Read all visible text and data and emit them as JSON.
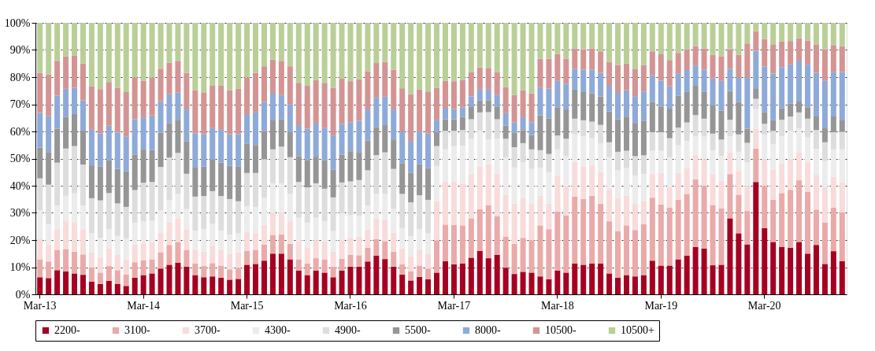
{
  "chart_data": {
    "type": "bar",
    "stacked": true,
    "categories": [
      "Mar-13",
      null,
      null,
      null,
      null,
      null,
      null,
      null,
      null,
      null,
      null,
      null,
      "Mar-14",
      null,
      null,
      null,
      null,
      null,
      null,
      null,
      null,
      null,
      null,
      null,
      "Mar-15",
      null,
      null,
      null,
      null,
      null,
      null,
      null,
      null,
      null,
      null,
      null,
      "Mar-16",
      null,
      null,
      null,
      null,
      null,
      null,
      null,
      null,
      null,
      null,
      null,
      "Mar-17",
      null,
      null,
      null,
      null,
      null,
      null,
      null,
      null,
      null,
      null,
      null,
      "Mar-18",
      null,
      null,
      null,
      null,
      null,
      null,
      null,
      null,
      null,
      null,
      null,
      "Mar-19",
      null,
      null,
      null,
      null,
      null,
      null,
      null,
      null,
      null,
      null,
      null,
      "Mar-20",
      null,
      null,
      null,
      null,
      null,
      null,
      null,
      null,
      null
    ],
    "ylim": [
      0,
      100
    ],
    "yticks": [
      {
        "value": 0,
        "label": "0%"
      },
      {
        "value": 10,
        "label": "10%"
      },
      {
        "value": 20,
        "label": "20%"
      },
      {
        "value": 30,
        "label": "30%"
      },
      {
        "value": 40,
        "label": "40%"
      },
      {
        "value": 50,
        "label": "50%"
      },
      {
        "value": 60,
        "label": "60%"
      },
      {
        "value": 70,
        "label": "70%"
      },
      {
        "value": 80,
        "label": "80%"
      },
      {
        "value": 90,
        "label": "90%"
      },
      {
        "value": 100,
        "label": "100%"
      }
    ],
    "grid": "y",
    "legend": "bottom",
    "series": [
      {
        "name": "2200-",
        "color": "#a50021",
        "values": [
          6.3,
          6,
          8.9,
          8.5,
          7.7,
          7.2,
          4.7,
          3.8,
          5,
          3.9,
          3.1,
          6.1,
          7.1,
          7.7,
          9.5,
          10.9,
          11.7,
          10.2,
          7.1,
          6.3,
          6.6,
          6.1,
          5.4,
          5.7,
          10.9,
          11.2,
          12.4,
          15,
          15,
          12.9,
          8.8,
          7.1,
          8.7,
          8,
          6.3,
          8.8,
          10.2,
          10.2,
          12.1,
          14.3,
          13,
          10.2,
          7.3,
          5.1,
          6.4,
          5.6,
          8,
          12.2,
          11.1,
          11.4,
          13.5,
          16,
          13.3,
          14.6,
          9.8,
          7.5,
          8.3,
          8,
          6.6,
          5.6,
          8.8,
          8,
          11.4,
          10.9,
          11.4,
          11.4,
          7.7,
          6.1,
          7.1,
          6.6,
          7.1,
          12.4,
          10.6,
          10.6,
          12.9,
          14.3,
          17.4,
          16.9,
          10.7,
          10.9,
          28,
          22.5,
          18.4,
          41.4,
          24.4,
          19.3,
          17.5,
          17.2,
          19.3,
          15,
          18.2,
          11.2,
          15.9,
          12.2
        ]
      },
      {
        "name": "3100-",
        "color": "#eaaaaa",
        "values": [
          6.6,
          6.1,
          7.5,
          8.2,
          8,
          7.5,
          5.1,
          4.2,
          5.4,
          5,
          4.2,
          5.7,
          5.5,
          5.2,
          6,
          7.3,
          7.6,
          6.2,
          4.2,
          4.1,
          4.9,
          4.5,
          3.8,
          4,
          5.1,
          5.2,
          6,
          6.9,
          7,
          5.7,
          4.1,
          4.3,
          4.6,
          4.9,
          3.9,
          4.3,
          4.4,
          4.2,
          5,
          6,
          6.6,
          5.5,
          3.8,
          3.4,
          4.2,
          3.9,
          11.8,
          13.5,
          14.5,
          14,
          14.5,
          15.4,
          19.6,
          14.2,
          11.5,
          11.1,
          12.5,
          11.9,
          18.8,
          18.4,
          21.7,
          21,
          24.6,
          24.2,
          24.9,
          22,
          19.2,
          17.2,
          18.3,
          17.1,
          18.8,
          23.2,
          22.5,
          21.4,
          21.9,
          22.7,
          24.9,
          23,
          22.2,
          20.8,
          16.3,
          14.2,
          12.3,
          12.3,
          15.5,
          15.6,
          19.8,
          21.3,
          22.7,
          22.7,
          13,
          15.2,
          16,
          18
        ]
      },
      {
        "name": "3700-",
        "color": "#f8dbdb",
        "values": [
          7.4,
          6.3,
          7.6,
          10.2,
          10.9,
          9.3,
          5.7,
          5.5,
          6.6,
          5.6,
          5.6,
          6.6,
          6.2,
          6.2,
          7.3,
          8.2,
          8.7,
          7.4,
          5.1,
          5.3,
          6.4,
          5.8,
          5.6,
          5.8,
          7,
          6.3,
          7.2,
          8.3,
          8.2,
          8.3,
          6.7,
          5.8,
          6.5,
          6.5,
          5.5,
          7,
          6.2,
          6.9,
          6.8,
          7.5,
          8,
          7,
          5.8,
          5.5,
          5.8,
          5.5,
          14.5,
          15.8,
          16,
          15.2,
          16.3,
          15.7,
          15,
          15.6,
          15.4,
          14.8,
          14.6,
          13.4,
          10.9,
          9.4,
          13.1,
          11.1,
          12.8,
          11.9,
          11.3,
          11.6,
          11.6,
          12.1,
          10.9,
          9.6,
          8.5,
          8.7,
          11.6,
          7.4,
          9.9,
          9.5,
          9,
          9.9,
          11.4,
          10.1,
          8,
          8.7,
          9.2,
          7.3,
          9.7,
          11,
          10.8,
          11.1,
          10.3,
          10.9,
          12.8,
          13,
          11.4,
          11
        ]
      },
      {
        "name": "4300-",
        "color": "#ececec",
        "values": [
          10.7,
          7.5,
          8.7,
          9.4,
          10.6,
          8.7,
          7,
          7.3,
          7,
          7,
          7.7,
          8,
          8.1,
          8,
          8.1,
          8.2,
          9,
          7.6,
          7.1,
          8.3,
          8,
          7.1,
          7.2,
          7,
          9.5,
          9.5,
          10,
          10.7,
          10.7,
          10.1,
          8.7,
          9.2,
          8.5,
          7.5,
          7.6,
          9.7,
          8.3,
          7.7,
          8.8,
          9.2,
          9.4,
          8.7,
          7.5,
          7.4,
          7.6,
          7.5,
          13,
          11.9,
          13,
          14.1,
          13,
          13.1,
          9.1,
          12.9,
          13.8,
          13.3,
          13.2,
          12.9,
          10.4,
          11.6,
          9.8,
          10.9,
          10.1,
          11.3,
          9.9,
          10.6,
          12,
          10.3,
          10.2,
          10.5,
          9.9,
          8.6,
          8.2,
          11.1,
          10.2,
          10,
          7,
          8.3,
          8.8,
          9.2,
          6,
          7.1,
          8.7,
          7.2,
          9.1,
          9.5,
          10.2,
          10.6,
          8.9,
          9.2,
          9.6,
          9.7,
          10.1,
          12.2
        ]
      },
      {
        "name": "4900-",
        "color": "#dddddd",
        "values": [
          11.7,
          14.5,
          15.8,
          17.4,
          17.4,
          15.1,
          12.9,
          13.8,
          13.3,
          12,
          11.6,
          12,
          14.2,
          14.3,
          16,
          15.8,
          15.1,
          13,
          12.5,
          12.2,
          12.1,
          12.7,
          13.1,
          11.8,
          12.2,
          12.5,
          14.2,
          12.5,
          13.5,
          13.5,
          13.1,
          13,
          12.6,
          12,
          12.4,
          11.4,
          12.5,
          13.1,
          13,
          14.3,
          15.3,
          14.8,
          12.6,
          12.5,
          12.5,
          12.3,
          7.3,
          6.8,
          5.6,
          5.8,
          7.2,
          6.8,
          10.1,
          7.2,
          6.8,
          7.5,
          7.1,
          7.2,
          6.4,
          6.7,
          5.1,
          6.3,
          5.8,
          5.8,
          6.1,
          6.8,
          5.5,
          6.8,
          6.4,
          7.1,
          6.9,
          6.8,
          6.8,
          7,
          6.5,
          6.8,
          7.7,
          6.6,
          6.1,
          6,
          6,
          6.4,
          7.2,
          3.8,
          4.1,
          4.8,
          6,
          5.3,
          5.8,
          6.9,
          6.9,
          6.9,
          6.3,
          6.5
        ]
      },
      {
        "name": "5500-",
        "color": "#969696",
        "values": [
          11.3,
          12,
          12.5,
          11.7,
          11.8,
          12.7,
          12.1,
          12.4,
          12,
          12.7,
          13.1,
          13.1,
          12.2,
          11.8,
          12.7,
          12.7,
          12.2,
          12,
          10.9,
          10.9,
          11.6,
          12.3,
          12.3,
          12.7,
          10.7,
          10.3,
          10.4,
          10.9,
          10,
          9.2,
          9.5,
          9.9,
          9.8,
          10.4,
          10.3,
          10.3,
          11.1,
          10.3,
          11,
          10.3,
          10,
          10.6,
          11.3,
          10.8,
          11.4,
          11.7,
          5.1,
          4.3,
          4.3,
          4.8,
          4.7,
          4.5,
          4.4,
          4.7,
          4.8,
          5.2,
          4.8,
          5.3,
          12.8,
          13.1,
          10.4,
          10.8,
          10.7,
          10.4,
          10.4,
          10.5,
          11.4,
          12,
          12.3,
          12,
          12.6,
          11.1,
          9.5,
          10.9,
          11.8,
          11.4,
          10.8,
          10,
          10.4,
          10.7,
          10.6,
          11.9,
          5.2,
          3.9,
          4.2,
          3.9,
          4.3,
          4.7,
          4,
          4.2,
          5,
          5.4,
          5.8,
          4.4
        ]
      },
      {
        "name": "8000-",
        "color": "#8eaad8",
        "values": [
          12.8,
          13.3,
          12.2,
          10.3,
          9.7,
          10.9,
          13.1,
          12.3,
          12.8,
          13.4,
          12.9,
          13,
          11.9,
          12.7,
          11.5,
          10.6,
          10.1,
          11.7,
          12.4,
          11.9,
          11.6,
          12.1,
          11.6,
          12,
          10.7,
          12,
          10.6,
          9.9,
          9,
          10.2,
          11.4,
          11.7,
          12.2,
          11.9,
          12.5,
          11.3,
          10.7,
          11.5,
          11.4,
          10.8,
          10.5,
          11.3,
          11.6,
          11.8,
          12.1,
          12.7,
          4.6,
          4.2,
          3.7,
          3.6,
          3.7,
          3.9,
          3.9,
          4.2,
          4.6,
          4,
          4.7,
          4.7,
          10.4,
          11,
          9.7,
          9.5,
          7.7,
          8.2,
          8.7,
          8.7,
          9.4,
          9.7,
          10,
          9.9,
          10.9,
          9.9,
          9.5,
          8.2,
          8,
          7.9,
          7.5,
          8,
          9.9,
          10.9,
          8.2,
          9,
          18.8,
          13.8,
          16.9,
          17.2,
          15.1,
          14.5,
          15.1,
          15.7,
          16.1,
          17.2,
          16.3,
          17.6
        ]
      },
      {
        "name": "10500-",
        "color": "#d49494",
        "values": [
          14.8,
          15.3,
          12.8,
          12,
          11.9,
          13.6,
          16.1,
          16.3,
          16.1,
          16.5,
          16.3,
          15.4,
          13.4,
          13.9,
          12,
          11.6,
          11.6,
          13.5,
          15.9,
          15.4,
          15.8,
          16.4,
          16.2,
          16.7,
          13.8,
          14.6,
          13.2,
          12.3,
          12.6,
          14.1,
          15.6,
          15.8,
          16.1,
          16.7,
          17.6,
          16.6,
          15.1,
          15.3,
          14.1,
          12.8,
          12.8,
          14.6,
          16,
          17.2,
          15.5,
          15.3,
          11.8,
          10,
          10.3,
          10.1,
          9,
          8.2,
          8,
          8.5,
          9.6,
          10,
          10,
          10.6,
          10.5,
          11,
          9.9,
          9.2,
          7.5,
          7.6,
          7.9,
          7.9,
          8.8,
          10.3,
          9.8,
          10.1,
          9.8,
          8.8,
          9.7,
          9.7,
          7.7,
          7.5,
          7.1,
          7.9,
          8.7,
          9.1,
          7.2,
          8.4,
          12.6,
          7.2,
          10.1,
          10.8,
          9.5,
          8.6,
          8.2,
          8.9,
          10.3,
          11.7,
          10,
          9.5
        ]
      },
      {
        "name": "10500+",
        "color": "#bacf97",
        "values": [
          18.4,
          19,
          14,
          12.3,
          12,
          15,
          23.3,
          24.4,
          21.8,
          23.9,
          25.5,
          20.1,
          21.4,
          20.2,
          16.9,
          14.7,
          14,
          18.4,
          24.8,
          25.6,
          23,
          23,
          24.8,
          24.3,
          20.1,
          18.4,
          16,
          13.5,
          14,
          16,
          22.1,
          23.2,
          21,
          22.1,
          23.9,
          20.6,
          21.5,
          20.8,
          17.8,
          14.8,
          14.4,
          17.3,
          24.1,
          26.3,
          24.5,
          25.5,
          23.9,
          21.3,
          21.5,
          21,
          18.1,
          16.4,
          16.6,
          18.1,
          23.7,
          26.6,
          24.8,
          26,
          13.2,
          13.2,
          11.5,
          13.2,
          9.4,
          9.7,
          9.4,
          10.5,
          14.4,
          15.5,
          15,
          17.1,
          15.5,
          10.5,
          11.6,
          13.7,
          11.1,
          9.9,
          8.6,
          9.4,
          11.8,
          12.3,
          9.7,
          11.8,
          7.6,
          3.1,
          6,
          7.9,
          6.8,
          6.7,
          5.7,
          6.5,
          8.1,
          9.7,
          8.2,
          8.6
        ]
      }
    ]
  }
}
